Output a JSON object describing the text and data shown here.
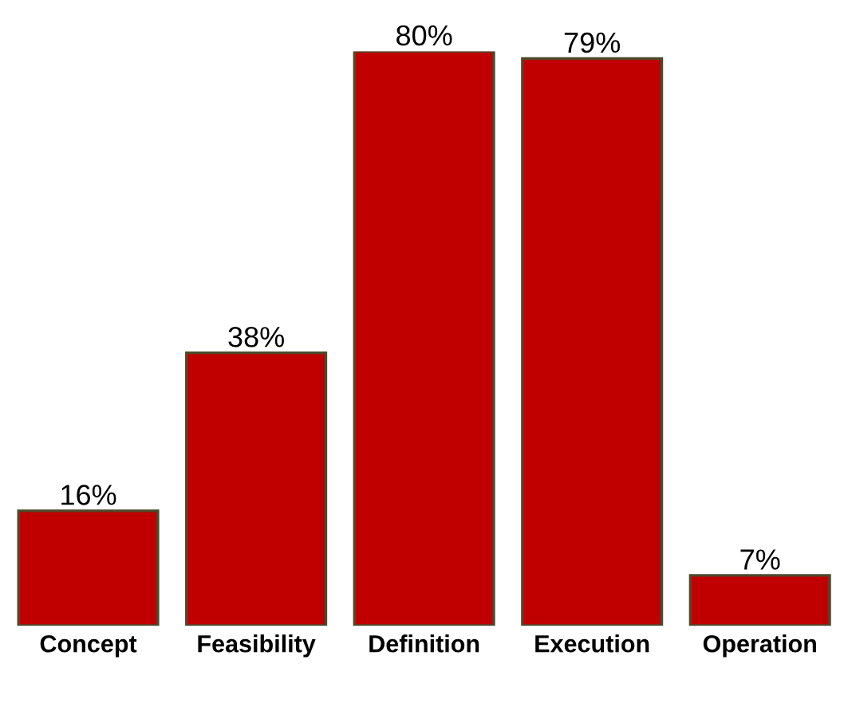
{
  "chart_data": {
    "type": "bar",
    "categories": [
      "Concept",
      "Feasibility",
      "Definition",
      "Execution",
      "Operation"
    ],
    "values": [
      16,
      38,
      80,
      79,
      7
    ],
    "value_labels": [
      "16%",
      "38%",
      "80%",
      "79%",
      "7%"
    ],
    "color": "#c00000",
    "tick_labels": "x",
    "grid": false,
    "legend": false
  }
}
